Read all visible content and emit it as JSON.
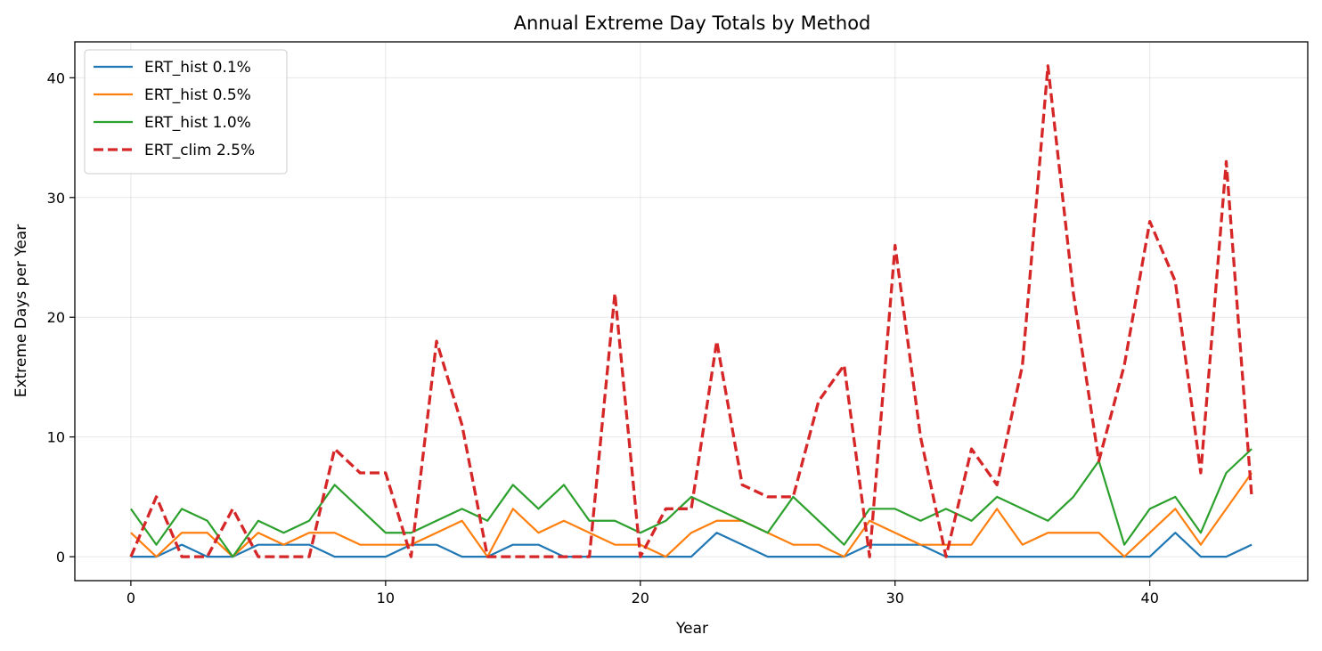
{
  "chart_data": {
    "type": "line",
    "title": "Annual Extreme Day Totals by Method",
    "xlabel": "Year",
    "ylabel": "Extreme Days per Year",
    "xlim": [
      -2.2,
      46.2
    ],
    "ylim": [
      -2,
      43
    ],
    "xticks": [
      0,
      10,
      20,
      30,
      40
    ],
    "yticks": [
      0,
      10,
      20,
      30,
      40
    ],
    "grid": true,
    "legend_position": "top-left",
    "x": [
      0,
      1,
      2,
      3,
      4,
      5,
      6,
      7,
      8,
      9,
      10,
      11,
      12,
      13,
      14,
      15,
      16,
      17,
      18,
      19,
      20,
      21,
      22,
      23,
      24,
      25,
      26,
      27,
      28,
      29,
      30,
      31,
      32,
      33,
      34,
      35,
      36,
      37,
      38,
      39,
      40,
      41,
      42,
      43,
      44
    ],
    "series": [
      {
        "name": "ERT_hist 0.1%",
        "color": "#1f77b4",
        "dash": "solid",
        "values": [
          0,
          0,
          1,
          0,
          0,
          1,
          1,
          1,
          0,
          0,
          0,
          1,
          1,
          0,
          0,
          1,
          1,
          0,
          0,
          0,
          0,
          0,
          0,
          2,
          1,
          0,
          0,
          0,
          0,
          1,
          1,
          1,
          0,
          0,
          0,
          0,
          0,
          0,
          0,
          0,
          0,
          2,
          0,
          0,
          1
        ]
      },
      {
        "name": "ERT_hist 0.5%",
        "color": "#ff7f0e",
        "dash": "solid",
        "values": [
          2,
          0,
          2,
          2,
          0,
          2,
          1,
          2,
          2,
          1,
          1,
          1,
          2,
          3,
          0,
          4,
          2,
          3,
          2,
          1,
          1,
          0,
          2,
          3,
          3,
          2,
          1,
          1,
          0,
          3,
          2,
          1,
          1,
          1,
          4,
          1,
          2,
          2,
          2,
          0,
          2,
          4,
          1,
          4,
          7
        ]
      },
      {
        "name": "ERT_hist 1.0%",
        "color": "#2ca02c",
        "dash": "solid",
        "values": [
          4,
          1,
          4,
          3,
          0,
          3,
          2,
          3,
          6,
          4,
          2,
          2,
          3,
          4,
          3,
          6,
          4,
          6,
          3,
          3,
          2,
          3,
          5,
          4,
          3,
          2,
          5,
          3,
          1,
          4,
          4,
          3,
          4,
          3,
          5,
          4,
          3,
          5,
          8,
          1,
          4,
          5,
          2,
          7,
          9
        ]
      },
      {
        "name": "ERT_clim 2.5%",
        "color": "#d62728",
        "dash": "dashed",
        "values": [
          0,
          5,
          0,
          0,
          4,
          0,
          0,
          0,
          9,
          7,
          7,
          0,
          18,
          11,
          0,
          0,
          0,
          0,
          0,
          22,
          0,
          4,
          4,
          18,
          6,
          5,
          5,
          13,
          16,
          0,
          26,
          10,
          0,
          9,
          6,
          16,
          41,
          22,
          8,
          16,
          28,
          23,
          7,
          33,
          5
        ]
      }
    ]
  }
}
